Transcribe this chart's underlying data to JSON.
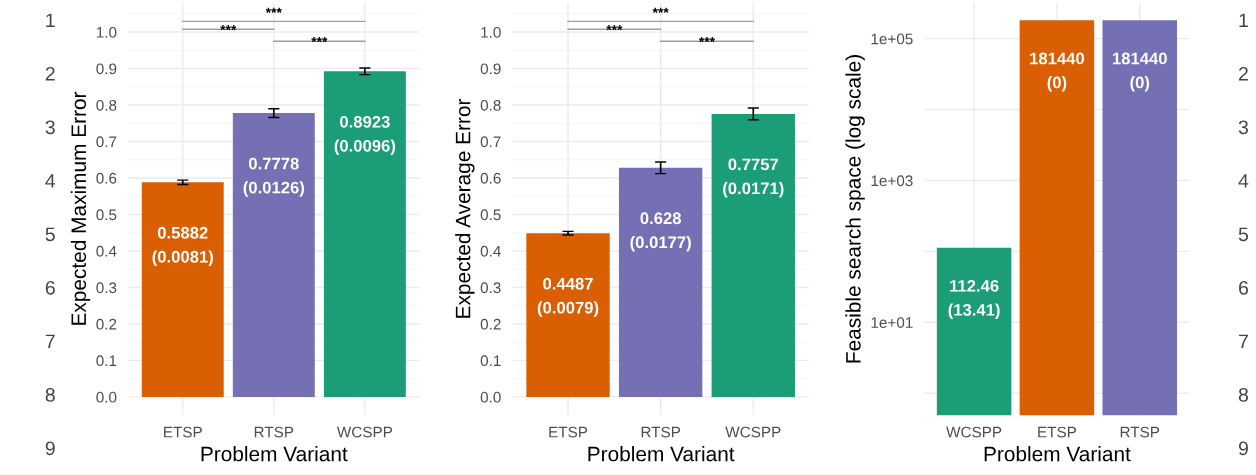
{
  "chart_data": [
    {
      "type": "bar",
      "categories": [
        "ETSP",
        "RTSP",
        "WCSPP"
      ],
      "values": [
        0.5882,
        0.7778,
        0.8923
      ],
      "colors": [
        "#d95f02",
        "#7570b3",
        "#1b9e77"
      ],
      "errors": [
        0.006,
        0.012,
        0.009
      ],
      "value_labels": [
        "0.5882\n(0.0081)",
        "0.7778\n(0.0126)",
        "0.8923\n(0.0096)"
      ],
      "xlabel": "Problem Variant",
      "ylabel": "Expected Maximum Error",
      "ylim": [
        -0.05,
        1.08
      ],
      "yticks": [
        {
          "value": 0,
          "label": "0.0"
        },
        0.1,
        0.2,
        0.3,
        0.4,
        0.5,
        0.6,
        0.7,
        0.8,
        0.9,
        {
          "value": 1.0,
          "label": "1.0"
        }
      ],
      "grid": true,
      "annotations": [
        "***",
        "***",
        "***",
        "1",
        "2",
        "3",
        "4",
        "5",
        "6",
        "7",
        "8",
        "9"
      ]
    },
    {
      "type": "bar",
      "categories": [
        "ETSP",
        "RTSP",
        "WCSPP"
      ],
      "values": [
        0.4487,
        0.628,
        0.7757
      ],
      "colors": [
        "#d95f02",
        "#7570b3",
        "#1b9e77"
      ],
      "errors": [
        0.005,
        0.016,
        0.016
      ],
      "value_labels": [
        "0.4487\n(0.0079)",
        "0.628\n(0.0177)",
        "0.7757\n(0.0171)"
      ],
      "xlabel": "Problem Variant",
      "ylabel": "Expected Average Error",
      "ylim": [
        -0.05,
        1.08
      ],
      "yticks": [
        {
          "value": 0,
          "label": "0.0"
        },
        0.1,
        0.2,
        0.3,
        0.4,
        0.5,
        0.6,
        0.7,
        0.8,
        0.9,
        {
          "value": 1.0,
          "label": "1.0"
        }
      ],
      "grid": true,
      "annotations": [
        "***",
        "***",
        "***"
      ]
    },
    {
      "type": "bar",
      "categories": [
        "WCSPP",
        "ETSP",
        "RTSP"
      ],
      "values": [
        112.46,
        181440,
        181440
      ],
      "colors": [
        "#1b9e77",
        "#d95f02",
        "#7570b3"
      ],
      "value_labels": [
        "112.46\n(13.41)",
        "181440\n(0)",
        "181440\n(0)"
      ],
      "xlabel": "Problem Variant",
      "ylabel": "Feasible search space (log scale)",
      "log": true,
      "ylim": [
        0.49,
        320000
      ],
      "yticks": [
        {
          "value": 1,
          "label": null
        },
        {
          "value": 10,
          "label": "1e+01"
        },
        {
          "value": 100,
          "label": null
        },
        {
          "value": 1000,
          "label": "1e+03"
        },
        {
          "value": 10000,
          "label": null
        },
        {
          "value": 100000,
          "label": "1e+05"
        }
      ],
      "grid": true,
      "annotations": [
        "1",
        "2",
        "3",
        "4",
        "5",
        "6",
        "7",
        "8",
        "9"
      ]
    }
  ]
}
